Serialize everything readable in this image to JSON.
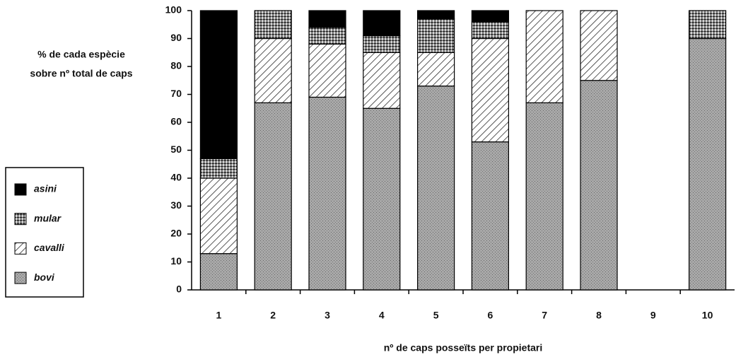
{
  "chart_data": {
    "type": "stacked_bar",
    "ylabel": [
      "% de cada espècie",
      "sobre nº total de caps"
    ],
    "xlabel": "nº de caps posseïts per propietari",
    "categories": [
      "1",
      "2",
      "3",
      "4",
      "5",
      "6",
      "7",
      "8",
      "9",
      "10"
    ],
    "series": [
      {
        "name": "bovi",
        "color": "#9a9a9a",
        "pattern": "dots",
        "values": [
          13,
          67,
          69,
          65,
          73,
          53,
          67,
          75,
          0,
          90
        ]
      },
      {
        "name": "cavalli",
        "color": "#ffffff",
        "pattern": "hatch",
        "values": [
          27,
          23,
          19,
          20,
          12,
          37,
          33,
          25,
          0,
          0
        ]
      },
      {
        "name": "mular",
        "color": "#8a8a8a",
        "pattern": "crosshatch",
        "values": [
          7,
          10,
          6,
          6,
          12,
          6,
          0,
          0,
          0,
          10
        ]
      },
      {
        "name": "asini",
        "color": "#000000",
        "pattern": "solid",
        "values": [
          53,
          0,
          6,
          9,
          3,
          4,
          0,
          0,
          0,
          0
        ]
      }
    ],
    "ylim": [
      0,
      100
    ],
    "yticks": [
      0,
      10,
      20,
      30,
      40,
      50,
      60,
      70,
      80,
      90,
      100
    ],
    "legend": "left"
  }
}
